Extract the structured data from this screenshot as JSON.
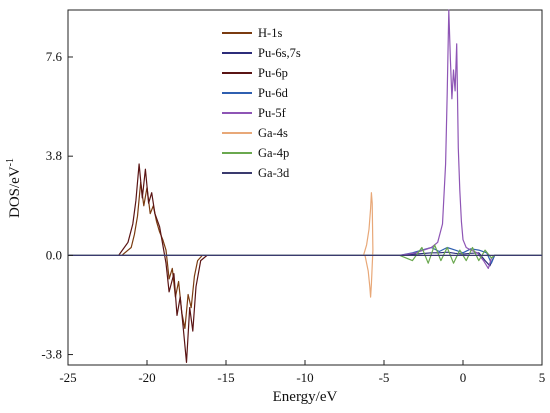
{
  "chart_data": {
    "type": "line",
    "title": "",
    "xlabel": "Energy/eV",
    "ylabel": "DOS/eV",
    "ylabel_superscript": "-1",
    "xlim": [
      -25,
      5
    ],
    "ylim": [
      -4.2,
      9.4
    ],
    "x_ticks": [
      -25,
      -20,
      -15,
      -10,
      -5,
      0,
      5
    ],
    "x_tick_labels": [
      "-25",
      "-20",
      "-15",
      "-10",
      "-5",
      "0",
      "5"
    ],
    "y_ticks": [
      -3.8,
      0.0,
      3.8,
      7.6
    ],
    "y_tick_labels": [
      "-3.8",
      "0.0",
      "3.8",
      "7.6"
    ],
    "grid": false,
    "legend_position": "top-center",
    "series": [
      {
        "name": "H-1s",
        "color": "#7a3b10",
        "x": [
          -21.6,
          -21.0,
          -20.8,
          -20.6,
          -20.4,
          -20.2,
          -20.0,
          -19.8,
          -19.6,
          -19.4,
          -19.2,
          -19.0,
          -18.8,
          -18.6,
          -18.4,
          -18.2,
          -18.0,
          -17.8,
          -17.6,
          -17.4,
          -17.2,
          -17.0,
          -16.8,
          -16.5
        ],
        "y": [
          0.0,
          0.3,
          0.8,
          1.5,
          2.8,
          1.9,
          2.6,
          1.6,
          1.9,
          1.3,
          0.9,
          0.6,
          0.2,
          -0.9,
          -0.5,
          -1.6,
          -1.0,
          -2.2,
          -2.8,
          -1.5,
          -2.0,
          -0.8,
          -0.2,
          0.0
        ]
      },
      {
        "name": "Pu-6s,7s",
        "color": "#2c2c7a",
        "x": [
          -25,
          -4.0,
          -3.0,
          -2.0,
          -1.5,
          -1.0,
          -0.5,
          0.0,
          0.5,
          1.0,
          1.4,
          1.7,
          2.0,
          5
        ],
        "y": [
          0.0,
          0.0,
          0.05,
          0.1,
          0.1,
          0.12,
          0.08,
          0.05,
          0.08,
          0.1,
          -0.2,
          -0.4,
          0.0,
          0.0
        ]
      },
      {
        "name": "Pu-6p",
        "color": "#5a1414",
        "x": [
          -21.8,
          -21.2,
          -20.9,
          -20.7,
          -20.5,
          -20.3,
          -20.1,
          -19.9,
          -19.7,
          -19.5,
          -19.2,
          -19.0,
          -18.8,
          -18.6,
          -18.3,
          -18.1,
          -17.9,
          -17.7,
          -17.5,
          -17.3,
          -17.1,
          -16.9,
          -16.6,
          -16.2
        ],
        "y": [
          0.0,
          0.5,
          1.2,
          2.1,
          3.5,
          2.2,
          3.3,
          2.0,
          2.4,
          1.6,
          1.1,
          0.4,
          -0.3,
          -1.4,
          -0.7,
          -2.3,
          -1.6,
          -2.8,
          -4.1,
          -2.0,
          -2.9,
          -1.2,
          -0.2,
          0.0
        ]
      },
      {
        "name": "Pu-6d",
        "color": "#2f5fb0",
        "x": [
          -25,
          -4.0,
          -3.2,
          -2.6,
          -2.0,
          -1.5,
          -1.0,
          -0.5,
          0.0,
          0.5,
          1.0,
          1.5,
          1.8,
          2.0,
          5
        ],
        "y": [
          0.0,
          0.0,
          0.1,
          0.2,
          0.3,
          0.15,
          0.3,
          0.2,
          0.1,
          0.25,
          0.2,
          0.1,
          -0.3,
          0.0,
          0.0
        ]
      },
      {
        "name": "Pu-5f",
        "color": "#8e55b5",
        "x": [
          -25,
          -4.0,
          -3.0,
          -2.0,
          -1.6,
          -1.3,
          -1.1,
          -1.0,
          -0.9,
          -0.8,
          -0.7,
          -0.6,
          -0.5,
          -0.4,
          -0.3,
          -0.2,
          -0.1,
          0.0,
          0.2,
          0.5,
          0.9,
          1.3,
          1.6,
          1.8,
          2.0,
          5
        ],
        "y": [
          0.0,
          0.0,
          0.1,
          0.3,
          0.5,
          1.2,
          3.5,
          6.2,
          9.4,
          7.5,
          6.0,
          7.1,
          6.3,
          8.1,
          4.1,
          2.5,
          1.3,
          0.6,
          0.3,
          0.2,
          0.1,
          -0.2,
          -0.5,
          -0.1,
          0.0,
          0.0
        ]
      },
      {
        "name": "Ga-4s",
        "color": "#e8a878",
        "x": [
          -6.3,
          -6.1,
          -5.95,
          -5.85,
          -5.8,
          -5.75,
          -5.7,
          -5.75,
          -5.8,
          -5.85,
          -5.9,
          -6.0,
          -6.2
        ],
        "y": [
          0.0,
          0.4,
          1.0,
          1.8,
          2.4,
          2.0,
          0.2,
          -0.4,
          -1.1,
          -1.6,
          -1.2,
          -0.6,
          0.0
        ]
      },
      {
        "name": "Ga-4p",
        "color": "#6aa84f",
        "x": [
          -25,
          -4.0,
          -3.2,
          -2.6,
          -2.2,
          -1.8,
          -1.4,
          -1.0,
          -0.6,
          -0.2,
          0.2,
          0.6,
          1.0,
          1.4,
          1.8,
          2.0,
          5
        ],
        "y": [
          0.0,
          0.0,
          -0.2,
          0.3,
          -0.3,
          0.4,
          -0.2,
          0.3,
          -0.3,
          0.2,
          -0.2,
          0.3,
          -0.2,
          0.2,
          -0.1,
          0.0,
          0.0
        ]
      },
      {
        "name": "Ga-3d",
        "color": "#3a3a6e",
        "x": [
          -25,
          5
        ],
        "y": [
          0.0,
          0.0
        ]
      }
    ]
  }
}
